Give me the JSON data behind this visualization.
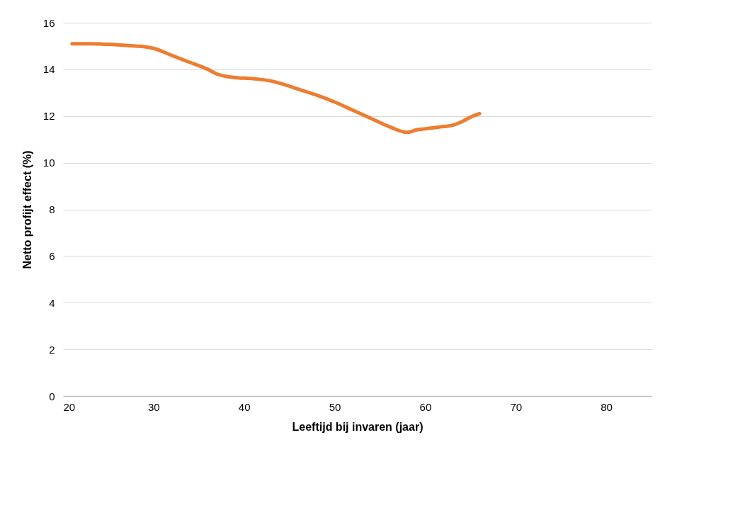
{
  "chart_data": {
    "type": "line",
    "xlabel": "Leeftijd bij invaren (jaar)",
    "ylabel": "Netto profijt effect (%)",
    "x": [
      21,
      23,
      26,
      28,
      29,
      30,
      32,
      34,
      36,
      37,
      38,
      39,
      41,
      43,
      44,
      46,
      48,
      50,
      52,
      54,
      56,
      58,
      59,
      60,
      61,
      62,
      63,
      64,
      65,
      66
    ],
    "series": [
      {
        "color": "#ed7d31",
        "values": [
          15.1,
          15.1,
          15.05,
          15.0,
          14.97,
          14.9,
          14.6,
          14.3,
          14.0,
          13.8,
          13.7,
          13.65,
          13.6,
          13.5,
          13.4,
          13.15,
          12.9,
          12.6,
          12.25,
          11.9,
          11.55,
          11.3,
          11.4,
          11.45,
          11.5,
          11.55,
          11.6,
          11.75,
          11.95,
          12.1
        ]
      }
    ],
    "xlim": [
      20,
      85
    ],
    "xticks": [
      20,
      30,
      40,
      50,
      60,
      70,
      80
    ],
    "ylim": [
      0,
      16
    ],
    "yticks": [
      0,
      2,
      4,
      6,
      8,
      10,
      12,
      14,
      16
    ],
    "grid": "y",
    "marker": "none",
    "line_style": "solid"
  }
}
